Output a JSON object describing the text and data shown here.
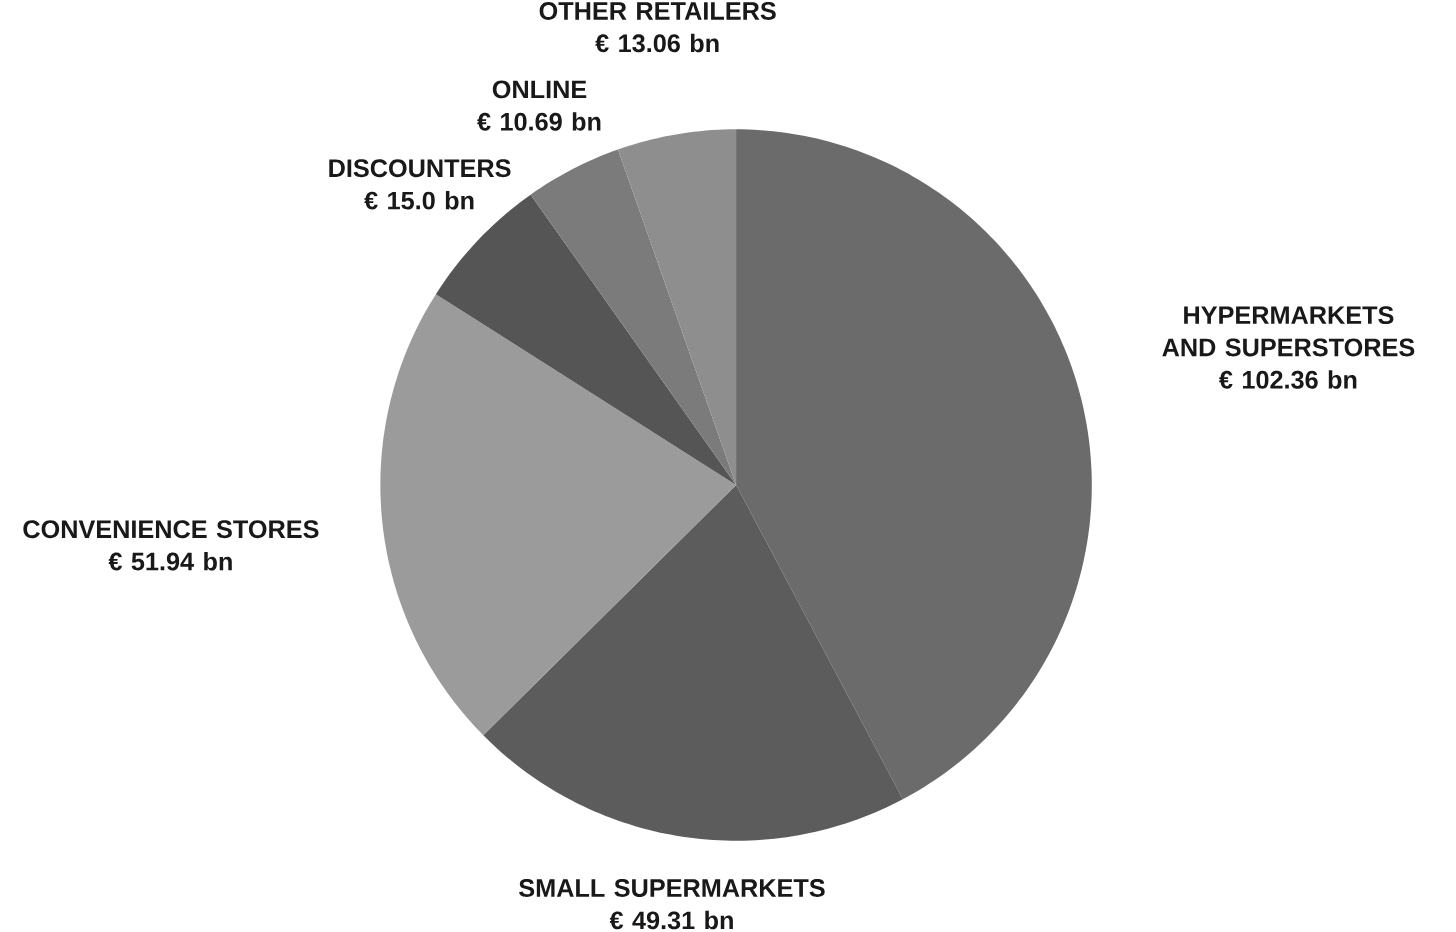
{
  "chart_data": {
    "type": "pie",
    "categories": [
      "HYPERMARKETS AND SUPERSTORES",
      "SMALL SUPERMARKETS",
      "CONVENIENCE STORES",
      "DISCOUNTERS",
      "ONLINE",
      "OTHER RETAILERS"
    ],
    "values": [
      102.36,
      49.31,
      51.94,
      15.0,
      10.69,
      13.06
    ],
    "value_labels": [
      "€ 102.36 bn",
      "€ 49.31 bn",
      "€ 51.94 bn",
      "€ 15.0 bn",
      "€ 10.69 bn",
      "€ 13.06 bn"
    ],
    "colors": [
      "#6b6b6b",
      "#5c5c5c",
      "#9b9b9b",
      "#555555",
      "#7b7b7b",
      "#8e8e8e"
    ]
  }
}
